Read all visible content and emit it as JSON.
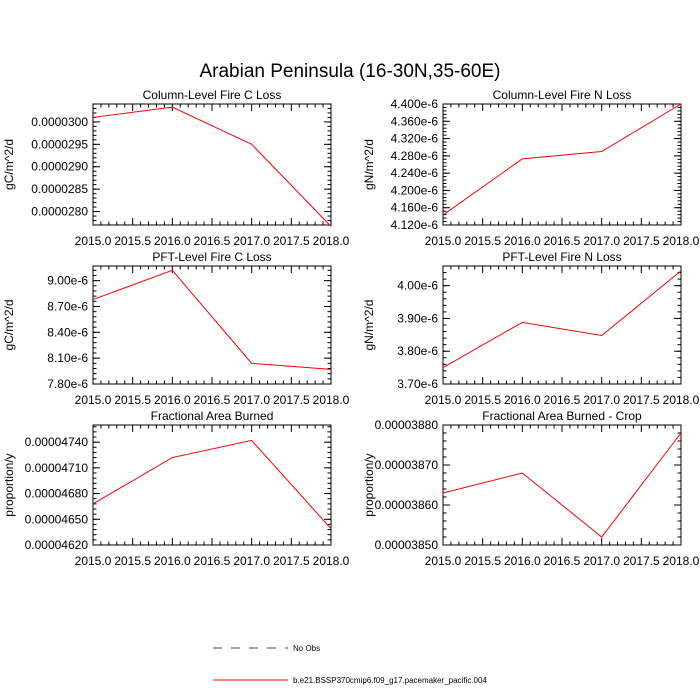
{
  "figure": {
    "title": "Arabian Peninsula (16-30N,35-60E)"
  },
  "legend": {
    "items": [
      {
        "label": "No Obs",
        "color": "#3a3aa0",
        "dash": true
      },
      {
        "label": "b.e21.BSSP370cmip6.f09_g17.pacemaker_pacific.004",
        "color": "#ff0000",
        "dash": false
      }
    ]
  },
  "chart_data": [
    {
      "type": "line",
      "title": "Column-Level Fire C Loss",
      "ylabel": "gC/m^2/d",
      "x": [
        2015,
        2016,
        2017,
        2018
      ],
      "xlim": [
        2015,
        2018
      ],
      "xticks": [
        "2015.0",
        "2015.5",
        "2016.0",
        "2016.5",
        "2017.0",
        "2017.5",
        "2018.0"
      ],
      "ylim": [
        2.77e-05,
        3.04e-05
      ],
      "yticks": [
        2.8e-05,
        2.85e-05,
        2.9e-05,
        2.95e-05,
        3e-05
      ],
      "yticklabels": [
        "0.0000280",
        "0.0000285",
        "0.0000290",
        "0.0000295",
        "0.0000300"
      ],
      "series": [
        {
          "values": [
            3.01e-05,
            3.033e-05,
            2.95e-05,
            2.767e-05
          ],
          "color": "#ff0000"
        }
      ]
    },
    {
      "type": "line",
      "title": "Column-Level Fire N Loss",
      "ylabel": "gN/m^2/d",
      "x": [
        2015,
        2016,
        2017,
        2018
      ],
      "xlim": [
        2015,
        2018
      ],
      "xticks": [
        "2015.0",
        "2015.5",
        "2016.0",
        "2016.5",
        "2017.0",
        "2017.5",
        "2018.0"
      ],
      "ylim": [
        4.12e-06,
        4.4e-06
      ],
      "yticks": [
        4.12e-06,
        4.16e-06,
        4.2e-06,
        4.24e-06,
        4.28e-06,
        4.32e-06,
        4.36e-06,
        4.4e-06
      ],
      "yticklabels": [
        "4.120e-6",
        "4.160e-6",
        "4.200e-6",
        "4.240e-6",
        "4.280e-6",
        "4.320e-6",
        "4.360e-6",
        "4.400e-6"
      ],
      "series": [
        {
          "values": [
            4.143e-06,
            4.273e-06,
            4.29e-06,
            4.4e-06
          ],
          "color": "#ff0000"
        }
      ]
    },
    {
      "type": "line",
      "title": "PFT-Level Fire C Loss",
      "ylabel": "gC/m^2/d",
      "x": [
        2015,
        2016,
        2017,
        2018
      ],
      "xlim": [
        2015,
        2018
      ],
      "xticks": [
        "2015.0",
        "2015.5",
        "2016.0",
        "2016.5",
        "2017.0",
        "2017.5",
        "2018.0"
      ],
      "ylim": [
        7.8e-06,
        9.17e-06
      ],
      "yticks": [
        7.8e-06,
        8.1e-06,
        8.4e-06,
        8.7e-06,
        9e-06
      ],
      "yticklabels": [
        "7.80e-6",
        "8.10e-6",
        "8.40e-6",
        "8.70e-6",
        "9.00e-6"
      ],
      "series": [
        {
          "values": [
            8.78e-06,
            9.12e-06,
            8.04e-06,
            7.97e-06
          ],
          "color": "#ff0000"
        }
      ]
    },
    {
      "type": "line",
      "title": "PFT-Level Fire N Loss",
      "ylabel": "gN/m^2/d",
      "x": [
        2015,
        2016,
        2017,
        2018
      ],
      "xlim": [
        2015,
        2018
      ],
      "xticks": [
        "2015.0",
        "2015.5",
        "2016.0",
        "2016.5",
        "2017.0",
        "2017.5",
        "2018.0"
      ],
      "ylim": [
        3.7e-06,
        4.06e-06
      ],
      "yticks": [
        3.7e-06,
        3.8e-06,
        3.9e-06,
        4e-06
      ],
      "yticklabels": [
        "3.70e-6",
        "3.80e-6",
        "3.90e-6",
        "4.00e-6"
      ],
      "series": [
        {
          "values": [
            3.75e-06,
            3.888e-06,
            3.848e-06,
            4.045e-06
          ],
          "color": "#ff0000"
        }
      ]
    },
    {
      "type": "line",
      "title": "Fractional Area Burned",
      "ylabel": "proportion/y",
      "x": [
        2015,
        2016,
        2017,
        2018
      ],
      "xlim": [
        2015,
        2018
      ],
      "xticks": [
        "2015.0",
        "2015.5",
        "2016.0",
        "2016.5",
        "2017.0",
        "2017.5",
        "2018.0"
      ],
      "ylim": [
        4.62e-05,
        4.76e-05
      ],
      "yticks": [
        4.62e-05,
        4.65e-05,
        4.68e-05,
        4.71e-05,
        4.74e-05
      ],
      "yticklabels": [
        "0.00004620",
        "0.00004650",
        "0.00004680",
        "0.00004710",
        "0.00004740"
      ],
      "series": [
        {
          "values": [
            4.668e-05,
            4.722e-05,
            4.742e-05,
            4.639e-05
          ],
          "color": "#ff0000"
        }
      ]
    },
    {
      "type": "line",
      "title": "Fractional Area Burned - Crop",
      "ylabel": "proportion/y",
      "x": [
        2015,
        2016,
        2017,
        2018
      ],
      "xlim": [
        2015,
        2018
      ],
      "xticks": [
        "2015.0",
        "2015.5",
        "2016.0",
        "2016.5",
        "2017.0",
        "2017.5",
        "2018.0"
      ],
      "ylim": [
        3.85e-05,
        3.88e-05
      ],
      "yticks": [
        3.85e-05,
        3.86e-05,
        3.87e-05,
        3.88e-05
      ],
      "yticklabels": [
        "0.00003850",
        "0.00003860",
        "0.00003870",
        "0.00003880"
      ],
      "series": [
        {
          "values": [
            3.863e-05,
            3.868e-05,
            3.852e-05,
            3.878e-05
          ],
          "color": "#ff0000"
        }
      ]
    }
  ]
}
